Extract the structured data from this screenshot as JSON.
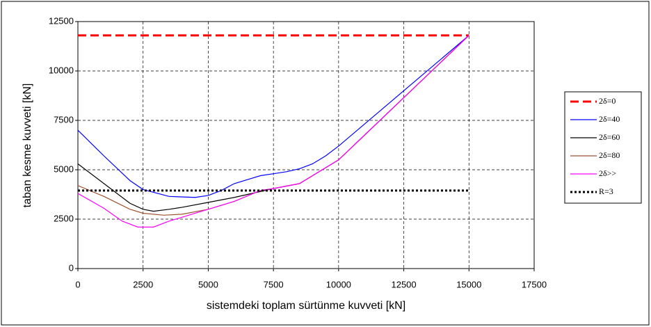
{
  "chart_data": {
    "type": "line",
    "xlabel": "sistemdeki toplam sürtünme kuvveti [kN]",
    "ylabel": "taban kesme kuvveti [kN]",
    "xlim": [
      0,
      17500
    ],
    "xticks": [
      0,
      2500,
      5000,
      7500,
      10000,
      12500,
      15000,
      17500
    ],
    "ylim": [
      0,
      12500
    ],
    "yticks": [
      0,
      2500,
      5000,
      7500,
      10000,
      12500
    ],
    "grid": true,
    "legend": "right",
    "series": [
      {
        "name": "2δ=0",
        "color": "#ff0000",
        "style": "dashed",
        "width": 3,
        "x": [
          0,
          15000
        ],
        "values": [
          11800,
          11800
        ]
      },
      {
        "name": "2δ=40",
        "color": "#0000ff",
        "style": "solid",
        "width": 1.2,
        "x": [
          0,
          1000,
          2000,
          2500,
          3500,
          4500,
          5000,
          5500,
          6000,
          7000,
          7500,
          8000,
          8500,
          9000,
          9500,
          10000,
          15000
        ],
        "values": [
          7000,
          5700,
          4450,
          4000,
          3650,
          3600,
          3700,
          3950,
          4300,
          4700,
          4800,
          4900,
          5050,
          5300,
          5700,
          6200,
          11800
        ]
      },
      {
        "name": "2δ=60",
        "color": "#000000",
        "style": "solid",
        "width": 1.2,
        "x": [
          0,
          1000,
          2000,
          2500,
          2900,
          3500,
          4000,
          5000,
          6000,
          7000,
          7500,
          8500,
          9000,
          10000,
          15000
        ],
        "values": [
          5300,
          4300,
          3300,
          3000,
          2900,
          3000,
          3100,
          3350,
          3600,
          3900,
          4050,
          4300,
          4700,
          5500,
          11800
        ]
      },
      {
        "name": "2δ=80",
        "color": "#a0522d",
        "style": "solid",
        "width": 1.2,
        "x": [
          0,
          1000,
          2000,
          2500,
          3300,
          4000,
          5000,
          6000,
          7000,
          7500,
          8500,
          9000,
          10000,
          15000
        ],
        "values": [
          4200,
          3650,
          3000,
          2800,
          2700,
          2750,
          3000,
          3400,
          3950,
          4050,
          4300,
          4700,
          5500,
          11800
        ]
      },
      {
        "name": "2δ>>",
        "color": "#ff00ff",
        "style": "solid",
        "width": 1.2,
        "x": [
          0,
          1000,
          1700,
          2300,
          2900,
          3500,
          4500,
          5000,
          6000,
          7000,
          7500,
          8500,
          9000,
          10000,
          15000
        ],
        "values": [
          3800,
          3050,
          2400,
          2100,
          2100,
          2400,
          2800,
          3000,
          3400,
          3950,
          4050,
          4300,
          4700,
          5500,
          11800
        ]
      },
      {
        "name": "R=3",
        "color": "#000000",
        "style": "dotted",
        "width": 3,
        "x": [
          0,
          15000
        ],
        "values": [
          3950,
          3950
        ]
      }
    ]
  }
}
